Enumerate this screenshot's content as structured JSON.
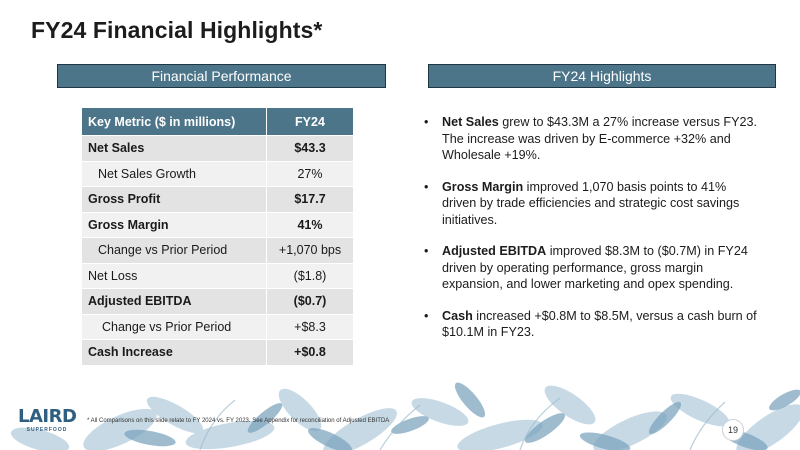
{
  "slide": {
    "title": "FY24 Financial Highlights*"
  },
  "left_header": "Financial Performance",
  "right_header": "FY24 Highlights",
  "table": {
    "columns": [
      "Key Metric ($ in millions)",
      "FY24"
    ],
    "rows": [
      {
        "label": "Net Sales",
        "value": "$43.3"
      },
      {
        "label": "Net Sales Growth",
        "value": "27%"
      },
      {
        "label": "Gross Profit",
        "value": "$17.7"
      },
      {
        "label": "Gross Margin",
        "value": "41%"
      },
      {
        "label": "Change vs Prior Period",
        "value": "+1,070 bps"
      },
      {
        "label": "Net Loss",
        "value": "($1.8)"
      },
      {
        "label": "Adjusted EBITDA",
        "value": "($0.7)"
      },
      {
        "label": "Change vs Prior Period",
        "value": "+$8.3"
      },
      {
        "label": "Cash Increase",
        "value": "+$0.8"
      }
    ]
  },
  "highlights": [
    {
      "bullet": "•",
      "bold": "Net Sales",
      "text": " grew to $43.3M a 27% increase versus FY23.  The increase was driven by E-commerce +32% and Wholesale +19%."
    },
    {
      "bullet": "•",
      "bold": "Gross Margin",
      "text": " improved 1,070 basis points to 41% driven by trade efficiencies and strategic cost savings initiatives."
    },
    {
      "bullet": "•",
      "bold": "Adjusted EBITDA",
      "text": " improved $8.3M to ($0.7M) in FY24 driven by operating performance, gross margin expansion, and lower marketing and opex spending."
    },
    {
      "bullet": "•",
      "bold": "Cash",
      "text": " increased +$0.8M to $8.5M, versus a cash burn of $10.1M in FY23."
    }
  ],
  "footer": {
    "logo_main": "LAIRD",
    "logo_sub": "SUPERFOOD",
    "footnote": "* All Comparisons on this slide relate to FY 2024 vs. FY 2023.   See Appendix for reconciliation of Adjusted EBITDA",
    "page_number": "19"
  },
  "colors": {
    "header_fill": "#4c7589",
    "header_border": "#1f3744",
    "leaf_dark": "#7fa6c0",
    "leaf_light": "#b8d0de"
  }
}
